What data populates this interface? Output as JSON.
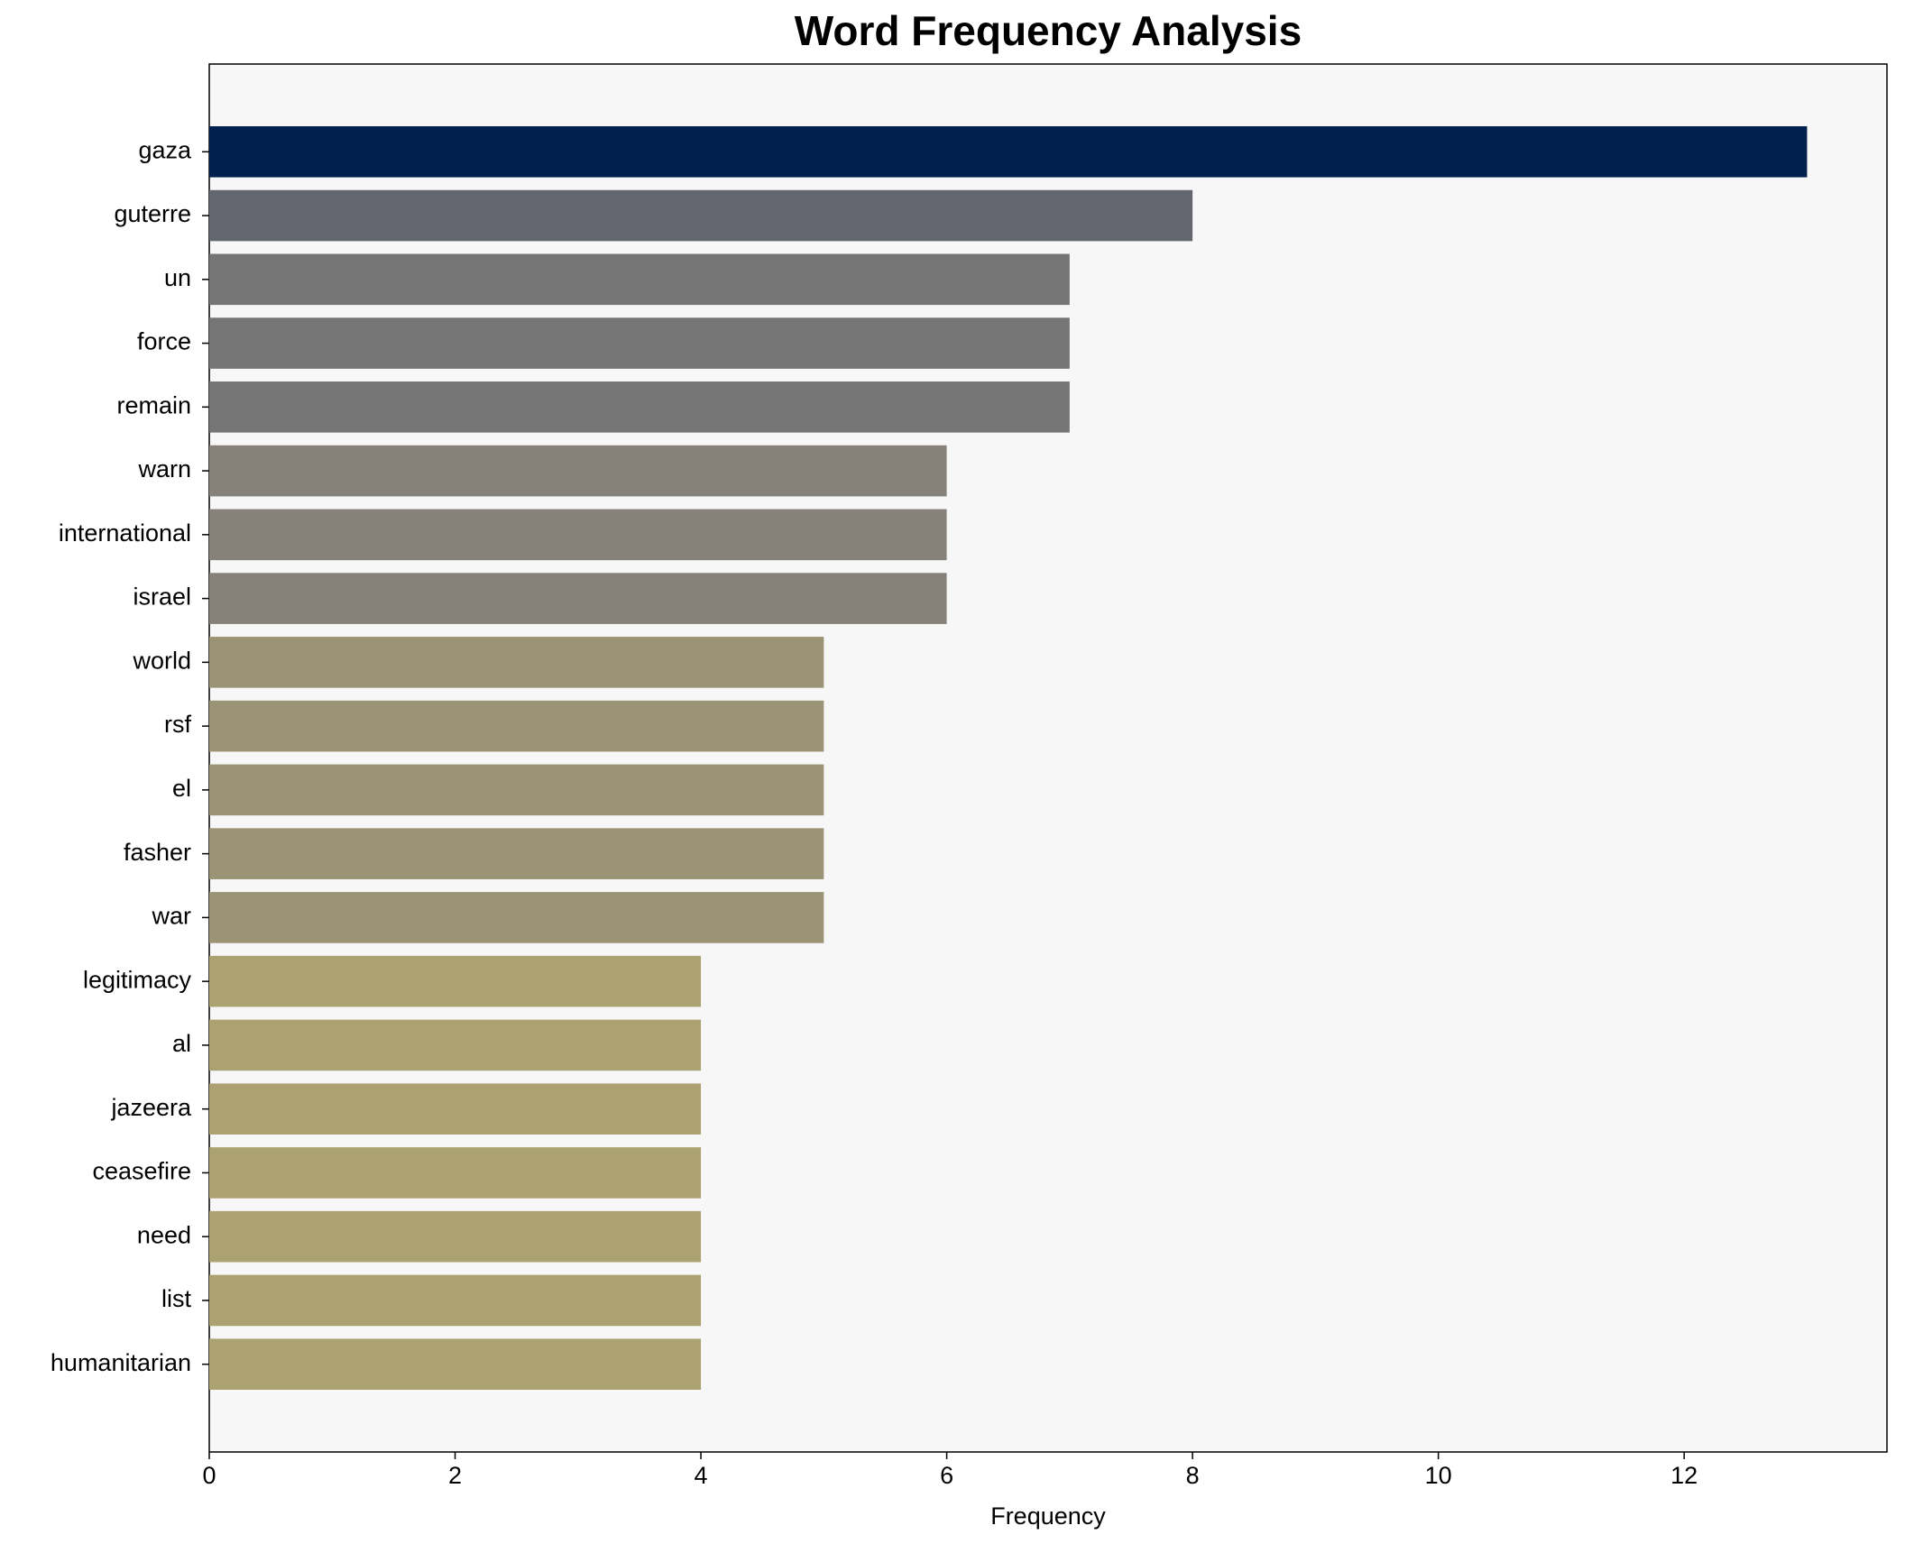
{
  "chart_data": {
    "type": "barh",
    "title": "Word Frequency Analysis",
    "xlabel": "Frequency",
    "categories": [
      "gaza",
      "guterre",
      "un",
      "force",
      "remain",
      "warn",
      "international",
      "israel",
      "world",
      "rsf",
      "el",
      "fasher",
      "war",
      "legitimacy",
      "al",
      "jazeera",
      "ceasefire",
      "need",
      "list",
      "humanitarian"
    ],
    "values": [
      13,
      8,
      7,
      7,
      7,
      6,
      6,
      6,
      5,
      5,
      5,
      5,
      5,
      4,
      4,
      4,
      4,
      4,
      4,
      4
    ],
    "colors": [
      "#00214d",
      "#63666f",
      "#757575",
      "#757575",
      "#757575",
      "#868279",
      "#868279",
      "#868279",
      "#9a9474",
      "#9a9474",
      "#9a9474",
      "#9a9474",
      "#9a9474",
      "#aca271",
      "#aca271",
      "#aca271",
      "#aca271",
      "#aca271",
      "#aca271",
      "#aca271"
    ],
    "xlim": [
      0,
      13.65
    ],
    "xticks": [
      0,
      2,
      4,
      6,
      8,
      10,
      12
    ],
    "background": "#f7f7f7"
  }
}
